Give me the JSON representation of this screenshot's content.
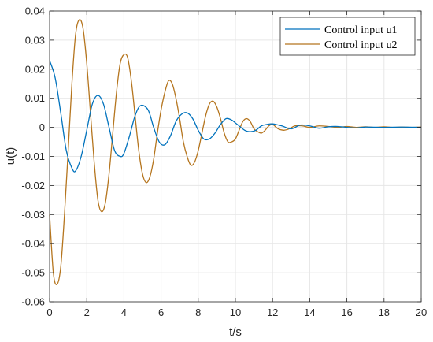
{
  "chart_data": {
    "type": "line",
    "title": "",
    "xlabel": "t/s",
    "ylabel": "u(t)",
    "xlim": [
      0,
      20
    ],
    "ylim": [
      -0.06,
      0.04
    ],
    "xticks": [
      "0",
      "2",
      "4",
      "6",
      "8",
      "10",
      "12",
      "14",
      "16",
      "18",
      "20"
    ],
    "yticks": [
      "0.04",
      "0.03",
      "0.02",
      "0.01",
      "0",
      "-0.01",
      "-0.02",
      "-0.03",
      "-0.04",
      "-0.05",
      "-0.06"
    ],
    "grid": true,
    "legend_position": "top-right",
    "series": [
      {
        "name": "Control input u1",
        "color": "#0072bd",
        "x": [
          0,
          0.3,
          0.6,
          0.9,
          1.2,
          1.4,
          1.7,
          2.0,
          2.3,
          2.6,
          2.9,
          3.2,
          3.5,
          3.8,
          4.0,
          4.3,
          4.6,
          4.9,
          5.3,
          5.6,
          5.9,
          6.2,
          6.5,
          6.8,
          7.1,
          7.4,
          7.7,
          8.0,
          8.3,
          8.6,
          8.9,
          9.2,
          9.5,
          9.8,
          10.1,
          10.5,
          10.8,
          11.1,
          11.4,
          11.7,
          12.0,
          12.5,
          13.0,
          13.5,
          14.0,
          14.5,
          15.0,
          15.5,
          16.0,
          16.5,
          17.0,
          18.0,
          19.0,
          20.0
        ],
        "y": [
          0.023,
          0.017,
          0.005,
          -0.008,
          -0.014,
          -0.015,
          -0.01,
          -0.001,
          0.008,
          0.011,
          0.008,
          0.0,
          -0.008,
          -0.01,
          -0.009,
          -0.003,
          0.004,
          0.0075,
          0.006,
          0.0,
          -0.005,
          -0.006,
          -0.003,
          0.002,
          0.0045,
          0.005,
          0.003,
          -0.001,
          -0.004,
          -0.004,
          -0.002,
          0.001,
          0.003,
          0.0025,
          0.001,
          -0.001,
          -0.0015,
          -0.001,
          0.0005,
          0.001,
          0.0012,
          0.0005,
          -0.0005,
          0.0008,
          0.0005,
          -0.0003,
          0.0002,
          0.0003,
          0.0,
          -0.0002,
          0.0001,
          0.0,
          0.0001,
          0.0
        ]
      },
      {
        "name": "Control input u2",
        "color": "#b5751e",
        "x": [
          0,
          0.2,
          0.4,
          0.6,
          0.8,
          1.0,
          1.2,
          1.4,
          1.6,
          1.8,
          2.0,
          2.2,
          2.4,
          2.6,
          2.8,
          3.0,
          3.2,
          3.4,
          3.6,
          3.8,
          4.0,
          4.2,
          4.4,
          4.6,
          4.8,
          5.0,
          5.2,
          5.4,
          5.6,
          5.8,
          6.0,
          6.2,
          6.4,
          6.6,
          6.8,
          7.0,
          7.2,
          7.4,
          7.6,
          7.8,
          8.0,
          8.2,
          8.4,
          8.6,
          8.8,
          9.0,
          9.2,
          9.4,
          9.6,
          9.8,
          10.0,
          10.2,
          10.4,
          10.6,
          10.8,
          11.0,
          11.2,
          11.4,
          11.6,
          11.8,
          12.0,
          12.3,
          12.6,
          12.9,
          13.2,
          13.6,
          14.0,
          14.5,
          15.0,
          15.5,
          16.0,
          16.5,
          17.0,
          17.5,
          18.0,
          18.5,
          19.0,
          19.5,
          20.0
        ],
        "y": [
          -0.03,
          -0.05,
          -0.054,
          -0.048,
          -0.03,
          -0.008,
          0.015,
          0.032,
          0.037,
          0.034,
          0.022,
          0.005,
          -0.012,
          -0.025,
          -0.029,
          -0.026,
          -0.016,
          -0.002,
          0.012,
          0.022,
          0.025,
          0.024,
          0.016,
          0.004,
          -0.008,
          -0.016,
          -0.019,
          -0.017,
          -0.011,
          -0.002,
          0.006,
          0.012,
          0.016,
          0.015,
          0.01,
          0.003,
          -0.005,
          -0.01,
          -0.013,
          -0.012,
          -0.008,
          -0.002,
          0.004,
          0.008,
          0.009,
          0.007,
          0.003,
          -0.002,
          -0.005,
          -0.005,
          -0.004,
          -0.001,
          0.002,
          0.003,
          0.002,
          -0.0005,
          -0.0015,
          -0.002,
          -0.001,
          0.0005,
          0.001,
          -0.0005,
          -0.001,
          -0.0005,
          0.0005,
          0.0005,
          0.0,
          0.0005,
          0.0003,
          0.0,
          0.0003,
          0.0,
          0.0002,
          0.0,
          0.0002,
          0.0,
          0.0001,
          0.0,
          0.0001
        ]
      }
    ]
  }
}
